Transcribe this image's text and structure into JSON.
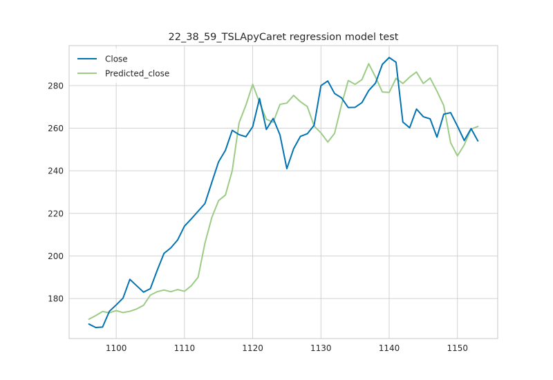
{
  "chart_data": {
    "type": "line",
    "title": "22_38_59_TSLApyCaret regression model test",
    "xlabel": "",
    "ylabel": "",
    "xlim": [
      1093.1,
      1155.9
    ],
    "ylim": [
      161.2,
      298.8
    ],
    "xticks": [
      1100,
      1110,
      1120,
      1130,
      1140,
      1150
    ],
    "yticks": [
      180,
      200,
      220,
      240,
      260,
      280
    ],
    "grid": true,
    "legend_position": "top-left",
    "x": [
      1096,
      1097,
      1098,
      1099,
      1100,
      1101,
      1102,
      1103,
      1104,
      1105,
      1106,
      1107,
      1108,
      1109,
      1110,
      1111,
      1112,
      1113,
      1114,
      1115,
      1116,
      1117,
      1118,
      1119,
      1120,
      1121,
      1122,
      1123,
      1124,
      1125,
      1126,
      1127,
      1128,
      1129,
      1130,
      1131,
      1132,
      1133,
      1134,
      1135,
      1136,
      1137,
      1138,
      1139,
      1140,
      1141,
      1142,
      1143,
      1144,
      1145,
      1146,
      1147,
      1148,
      1149,
      1150,
      1151,
      1152,
      1153
    ],
    "series": [
      {
        "name": "Close",
        "color": "#0072b2",
        "values": [
          168.0,
          166.4,
          166.6,
          174.0,
          177.0,
          180.2,
          189.0,
          186.0,
          183.0,
          184.6,
          193.2,
          201.2,
          203.8,
          207.5,
          214.0,
          217.4,
          221.0,
          224.6,
          234.5,
          244.2,
          249.6,
          259.0,
          257.0,
          256.0,
          260.7,
          274.0,
          259.4,
          264.6,
          256.8,
          241.0,
          250.4,
          256.2,
          257.4,
          261.4,
          280.0,
          282.2,
          276.3,
          274.3,
          269.7,
          269.8,
          272.0,
          277.7,
          281.2,
          290.0,
          293.2,
          291.0,
          262.9,
          260.2,
          269.0,
          265.4,
          264.4,
          255.8,
          266.6,
          267.3,
          261.0,
          254.2,
          259.8,
          254.0
        ]
      },
      {
        "name": "Predicted_close",
        "color": "#9ccb86",
        "values": [
          170.3,
          172.0,
          173.9,
          173.3,
          174.3,
          173.4,
          174.0,
          175.1,
          176.8,
          181.6,
          183.2,
          184.0,
          183.2,
          184.2,
          183.4,
          186.0,
          190.0,
          206.0,
          218.0,
          226.0,
          228.6,
          240.0,
          262.5,
          270.8,
          280.6,
          272.0,
          264.2,
          262.8,
          271.2,
          271.8,
          275.4,
          272.4,
          270.2,
          261.0,
          257.8,
          253.5,
          257.6,
          270.8,
          282.4,
          280.6,
          282.8,
          290.3,
          284.0,
          277.0,
          276.8,
          283.4,
          281.0,
          284.0,
          286.4,
          281.0,
          283.6,
          277.4,
          270.6,
          253.2,
          247.0,
          252.2,
          259.6,
          260.8
        ]
      }
    ]
  }
}
